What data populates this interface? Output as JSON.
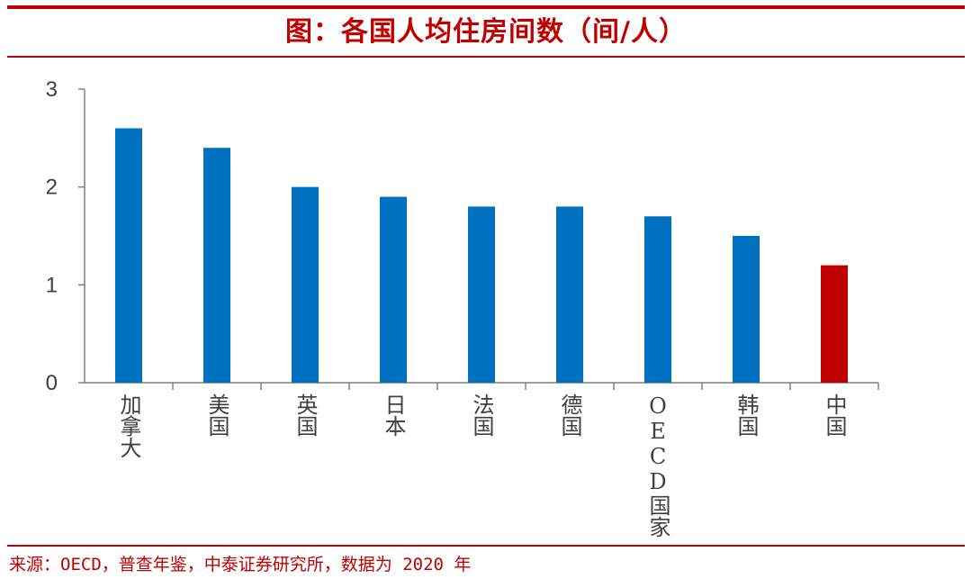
{
  "header": {
    "title": "图：各国人均住房间数（间/人）"
  },
  "footer": {
    "source": "来源：OECD，普查年鉴，中泰证券研究所，数据为 2020 年"
  },
  "colors": {
    "accent": "#c00000",
    "bar": "#0070c0",
    "highlight_bar": "#c00000",
    "axis": "#808080",
    "text": "#404040"
  },
  "chart_data": {
    "type": "bar",
    "title": "图：各国人均住房间数（间/人）",
    "xlabel": "",
    "ylabel": "",
    "categories": [
      "加拿大",
      "美国",
      "英国",
      "日本",
      "法国",
      "德国",
      "OECD国家",
      "韩国",
      "中国"
    ],
    "values": [
      2.6,
      2.4,
      2.0,
      1.9,
      1.8,
      1.8,
      1.7,
      1.5,
      1.2
    ],
    "highlight": "中国",
    "ylim": [
      0,
      3
    ],
    "yticks": [
      0,
      1,
      2,
      3
    ],
    "grid": false,
    "legend": "none"
  }
}
